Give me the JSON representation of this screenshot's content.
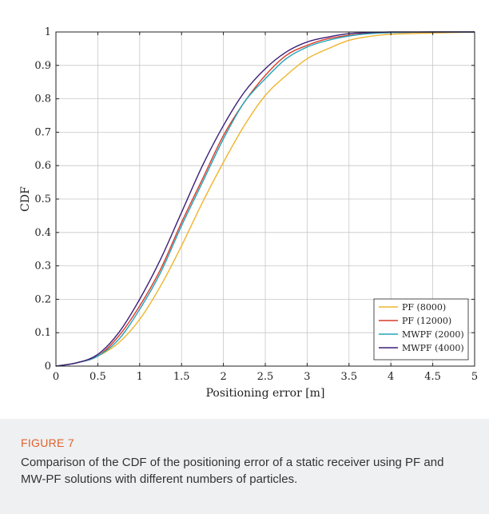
{
  "figure": {
    "label": "FIGURE 7",
    "caption": "Comparison of the CDF of the positioning error of a static receiver using PF and MW-PF solutions with different numbers of particles."
  },
  "chart_data": {
    "type": "line",
    "xlabel": "Positioning error [m]",
    "ylabel": "CDF",
    "xlim": [
      0,
      5
    ],
    "ylim": [
      0,
      1
    ],
    "xticks": [
      0,
      0.5,
      1,
      1.5,
      2,
      2.5,
      3,
      3.5,
      4,
      4.5,
      5
    ],
    "xtick_labels": [
      "0",
      "0.5",
      "1",
      "1.5",
      "2",
      "2.5",
      "3",
      "3.5",
      "4",
      "4.5",
      "5"
    ],
    "yticks": [
      0,
      0.1,
      0.2,
      0.3,
      0.4,
      0.5,
      0.6,
      0.7,
      0.8,
      0.9,
      1
    ],
    "ytick_labels": [
      "0",
      "0.1",
      "0.2",
      "0.3",
      "0.4",
      "0.5",
      "0.6",
      "0.7",
      "0.8",
      "0.9",
      "1"
    ],
    "grid": true,
    "legend_position": "bottom-right",
    "series": [
      {
        "name": "PF (8000)",
        "color": "#f0b42a",
        "x": [
          0,
          0.25,
          0.5,
          0.75,
          1.0,
          1.25,
          1.5,
          1.75,
          2.0,
          2.25,
          2.5,
          2.75,
          3.0,
          3.25,
          3.5,
          3.75,
          4.0,
          4.5,
          5.0
        ],
        "y": [
          0,
          0.01,
          0.03,
          0.07,
          0.14,
          0.24,
          0.36,
          0.49,
          0.61,
          0.72,
          0.81,
          0.87,
          0.92,
          0.95,
          0.975,
          0.987,
          0.993,
          0.997,
          1.0
        ]
      },
      {
        "name": "PF (12000)",
        "color": "#d93a2a",
        "x": [
          0,
          0.25,
          0.5,
          0.75,
          1.0,
          1.25,
          1.5,
          1.75,
          2.0,
          2.25,
          2.5,
          2.75,
          3.0,
          3.25,
          3.5,
          3.75,
          4.0,
          4.5,
          5.0
        ],
        "y": [
          0,
          0.01,
          0.03,
          0.09,
          0.18,
          0.29,
          0.43,
          0.56,
          0.69,
          0.79,
          0.87,
          0.93,
          0.96,
          0.98,
          0.99,
          0.996,
          0.998,
          1.0,
          1.0
        ]
      },
      {
        "name": "MWPF (2000)",
        "color": "#23a3b8",
        "x": [
          0,
          0.25,
          0.5,
          0.75,
          1.0,
          1.25,
          1.5,
          1.75,
          2.0,
          2.25,
          2.5,
          2.75,
          3.0,
          3.25,
          3.5,
          3.75,
          4.0,
          4.5,
          5.0
        ],
        "y": [
          0,
          0.01,
          0.03,
          0.08,
          0.17,
          0.28,
          0.42,
          0.55,
          0.68,
          0.79,
          0.86,
          0.92,
          0.955,
          0.975,
          0.988,
          0.995,
          0.998,
          1.0,
          1.0
        ]
      },
      {
        "name": "MWPF (4000)",
        "color": "#3a1e78",
        "x": [
          0,
          0.25,
          0.5,
          0.75,
          1.0,
          1.25,
          1.5,
          1.75,
          2.0,
          2.25,
          2.5,
          2.75,
          3.0,
          3.25,
          3.5,
          3.75,
          4.0,
          4.5,
          5.0
        ],
        "y": [
          0,
          0.01,
          0.035,
          0.1,
          0.2,
          0.32,
          0.46,
          0.6,
          0.72,
          0.82,
          0.89,
          0.94,
          0.97,
          0.985,
          0.995,
          0.998,
          1.0,
          1.0,
          1.0
        ]
      }
    ]
  }
}
